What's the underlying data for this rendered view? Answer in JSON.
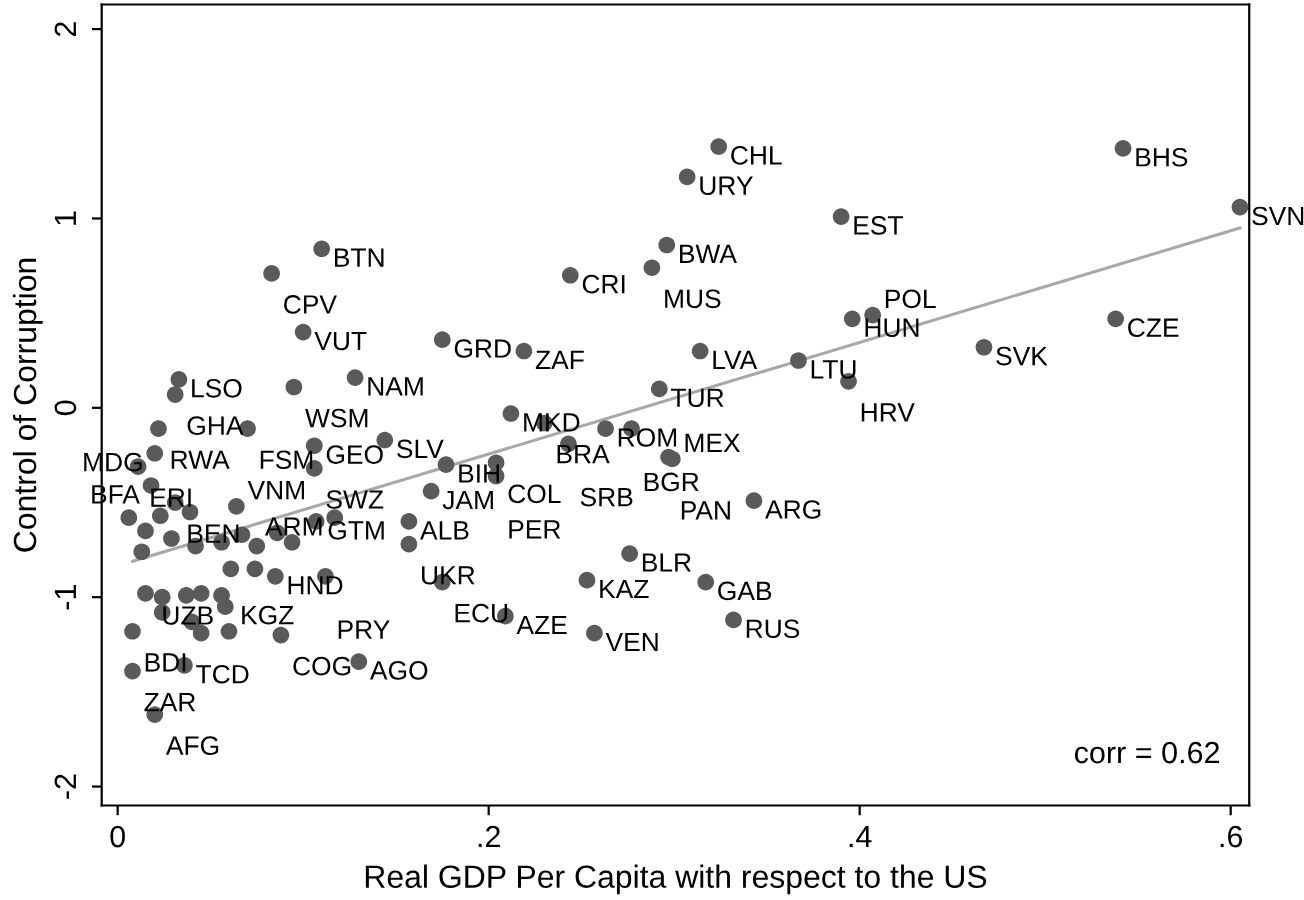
{
  "chart_data": {
    "type": "scatter",
    "xlabel": "Real GDP Per Capita with respect to the US",
    "ylabel": "Control of Corruption",
    "xlim": [
      -0.0086,
      0.61
    ],
    "ylim": [
      -2.1,
      2.13
    ],
    "xticks": [
      0,
      {
        "value": 0.2,
        "label": ".2"
      },
      {
        "value": 0.4,
        "label": ".4"
      },
      {
        "value": 0.6,
        "label": ".6"
      }
    ],
    "yticks": [
      -2,
      -1,
      0,
      1,
      2
    ],
    "grid": false,
    "legend": false,
    "marker": "circle",
    "annotations": [
      "corr = 0.62"
    ],
    "series": [
      {
        "color": "#5a5a5a",
        "x": [
          0.324,
          0.542,
          0.307,
          0.605,
          0.39,
          0.11,
          0.296,
          0.288,
          0.244,
          0.083,
          0.396,
          0.407,
          0.538,
          0.1,
          0.175,
          0.219,
          0.314,
          0.467,
          0.367,
          0.394,
          0.292,
          0.128,
          0.095,
          0.033,
          0.031,
          0.022,
          0.07,
          0.106,
          0.106,
          0.144,
          0.212,
          0.23,
          0.263,
          0.277,
          0.243,
          0.297,
          0.299,
          0.343,
          0.177,
          0.204,
          0.204,
          0.169,
          0.157,
          0.157,
          0.276,
          0.175,
          0.253,
          0.317,
          0.209,
          0.257,
          0.332,
          0.13,
          0.107,
          0.117,
          0.085,
          0.112,
          0.088,
          0.06,
          0.058,
          0.036,
          0.008,
          0.02,
          0.008,
          0.02,
          0.011,
          0.018,
          0.031,
          0.064,
          0.006,
          0.023,
          0.039,
          0.015,
          0.029,
          0.042,
          0.056,
          0.013,
          0.067,
          0.075,
          0.094,
          0.086,
          0.061,
          0.074,
          0.015,
          0.024,
          0.037,
          0.045,
          0.056,
          0.024,
          0.04,
          0.045
        ],
        "values": [
          1.38,
          1.37,
          1.22,
          1.06,
          1.01,
          0.84,
          0.86,
          0.74,
          0.7,
          0.71,
          0.47,
          0.49,
          0.47,
          0.4,
          0.36,
          0.3,
          0.3,
          0.32,
          0.25,
          0.14,
          0.1,
          0.16,
          0.11,
          0.15,
          0.07,
          -0.11,
          -0.11,
          -0.2,
          -0.32,
          -0.17,
          -0.03,
          -0.08,
          -0.11,
          -0.11,
          -0.19,
          -0.26,
          -0.27,
          -0.49,
          -0.3,
          -0.29,
          -0.36,
          -0.44,
          -0.6,
          -0.72,
          -0.77,
          -0.92,
          -0.91,
          -0.92,
          -1.1,
          -1.19,
          -1.12,
          -1.34,
          -0.6,
          -0.58,
          -0.89,
          -0.89,
          -1.2,
          -1.18,
          -1.05,
          -1.36,
          -1.39,
          -1.62,
          -1.18,
          -0.24,
          -0.31,
          -0.41,
          -0.5,
          -0.52,
          -0.58,
          -0.57,
          -0.55,
          -0.65,
          -0.69,
          -0.73,
          -0.71,
          -0.76,
          -0.67,
          -0.73,
          -0.71,
          -0.66,
          -0.85,
          -0.85,
          -0.98,
          -1.0,
          -0.99,
          -0.98,
          -0.99,
          -1.08,
          -1.13,
          -1.19
        ],
        "value_labels": [
          "CHL",
          "BHS",
          "URY",
          "SVN",
          "EST",
          "BTN",
          "BWA",
          "MUS",
          "CRI",
          "CPV",
          "HUN",
          "POL",
          "CZE",
          "VUT",
          "GRD",
          "ZAF",
          "LVA",
          "SVK",
          "LTU",
          "HRV",
          "TUR",
          "NAM",
          "WSM",
          "LSO",
          "GHA",
          "RWA",
          "FSM",
          "GEO",
          "SWZ",
          "SLV",
          "MKD",
          "BRA",
          "ROM",
          "BGR",
          "SRB",
          "PAN",
          "MEX",
          "ARG",
          "BIH",
          "COL",
          "PER",
          "JAM",
          "ALB",
          "UKR",
          "BLR",
          "ECU",
          "KAZ",
          "GAB",
          "AZE",
          "VEN",
          "RUS",
          "AGO",
          "GTM",
          "ARM",
          "HND",
          "PRY",
          "COG",
          "KGZ",
          "UZB",
          "TCD",
          "ZAR",
          "AFG",
          "BDI",
          "MDG",
          "ERI",
          "BFA",
          "BEN",
          "VNM",
          null,
          null,
          null,
          null,
          null,
          null,
          null,
          null,
          null,
          null,
          null,
          null,
          null,
          null,
          null,
          null,
          null,
          null,
          null,
          null,
          null,
          null
        ]
      },
      {
        "type": "line",
        "color": "#a8a8a8",
        "marker": "none",
        "x": [
          0.008,
          0.605
        ],
        "values": [
          -0.81,
          0.95
        ]
      }
    ]
  }
}
